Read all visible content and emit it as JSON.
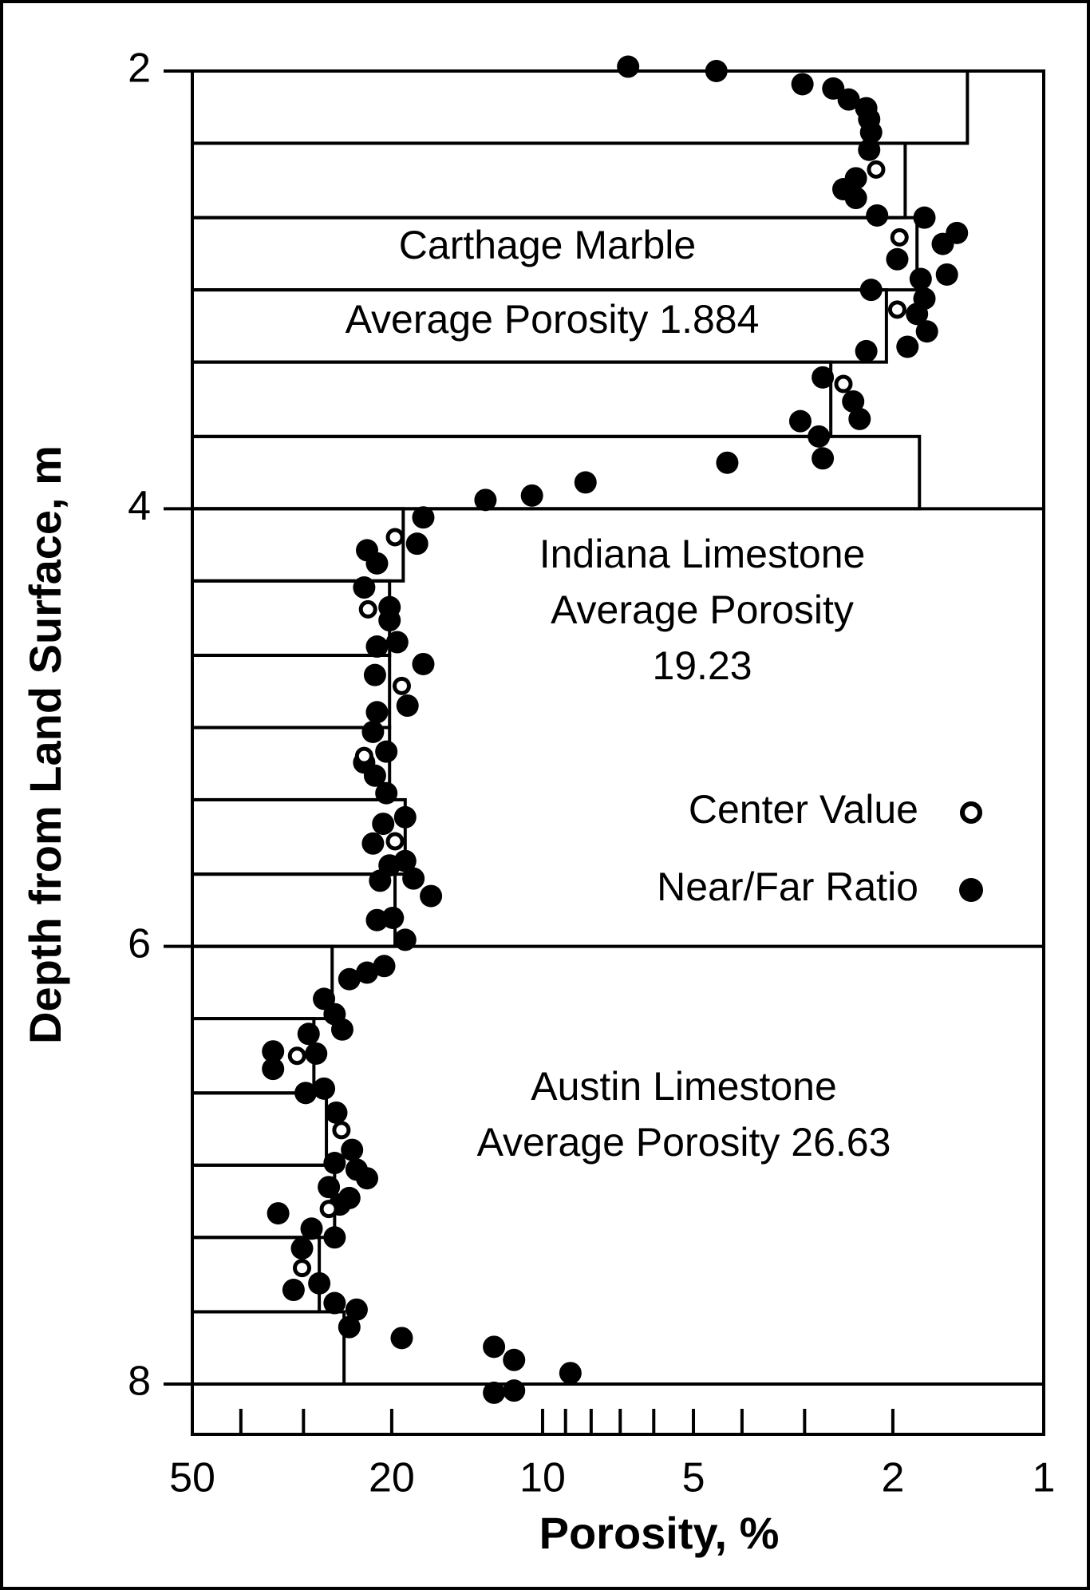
{
  "chart_data": {
    "type": "scatter",
    "x_label": "Porosity, %",
    "y_label": "Depth from Land Surface, m",
    "xscale": "log",
    "xlim": [
      50,
      1
    ],
    "xticks": [
      50,
      20,
      10,
      5,
      2,
      1
    ],
    "x_minor_ticks": [
      40,
      30,
      9,
      8,
      7,
      6,
      4,
      3
    ],
    "ylim": [
      2,
      8.23
    ],
    "y_inverted": true,
    "yticks": [
      2,
      4,
      6,
      8
    ],
    "grid": true,
    "legend": "center right",
    "annotations": [
      "Carthage Marble",
      "Average Porosity 1.884",
      "Indiana Limestone",
      "Average Porosity",
      "19.23",
      "Austin Limestone",
      "Average Porosity 26.63"
    ],
    "step_bars": {
      "color": "#000000",
      "depth_edges": [
        2,
        2.33,
        2.67,
        3,
        3.33,
        3.67,
        4,
        4.33,
        4.67,
        5,
        5.33,
        5.67,
        6,
        6.33,
        6.67,
        7,
        7.33,
        7.67,
        8
      ],
      "values": [
        1.42,
        1.89,
        1.79,
        2.06,
        2.66,
        1.77,
        18.97,
        20.2,
        20.2,
        20.2,
        18.8,
        19.7,
        26.3,
        28.6,
        27,
        26,
        27.9,
        24.9
      ]
    },
    "series": [
      {
        "name": "Center Value",
        "marker": "open",
        "color": "#000000",
        "x": [
          2.16,
          1.94,
          1.96,
          2.51,
          19.7,
          22.3,
          19.1,
          22.7,
          19.7,
          30.9,
          25.2,
          26.7,
          30.2
        ],
        "y": [
          2.45,
          2.76,
          3.09,
          3.43,
          4.13,
          4.46,
          4.81,
          5.13,
          5.52,
          6.5,
          6.84,
          7.2,
          7.47
        ]
      },
      {
        "name": "Near/Far Ratio",
        "marker": "filled",
        "color": "#000000",
        "x": [
          6.75,
          4.5,
          3.03,
          2.63,
          2.45,
          2.26,
          2.23,
          2.21,
          2.23,
          2.37,
          2.51,
          2.37,
          2.15,
          1.73,
          1.59,
          1.49,
          1.96,
          1.56,
          1.76,
          2.21,
          1.73,
          1.79,
          1.71,
          1.87,
          2.26,
          2.76,
          2.4,
          3.06,
          2.33,
          2.81,
          2.76,
          4.28,
          8.21,
          10.5,
          13,
          17.3,
          17.8,
          22.4,
          21.4,
          22.7,
          20.2,
          20.2,
          21.4,
          19.5,
          17.3,
          21.6,
          18.6,
          21.4,
          21.8,
          20.5,
          22.7,
          21.6,
          20.5,
          18.8,
          20.8,
          21.8,
          18.8,
          20.2,
          18.1,
          21.1,
          16.7,
          21.4,
          19.9,
          18.8,
          20.7,
          22.4,
          24.3,
          27.3,
          26,
          25.1,
          29.3,
          34.5,
          28.3,
          34.5,
          27.3,
          29.7,
          25.8,
          24,
          26,
          23.5,
          22.4,
          26.7,
          24.3,
          25.4,
          33.7,
          28.9,
          26,
          30.2,
          27.9,
          31.4,
          26,
          23.5,
          24.3,
          19.1,
          12.5,
          11.4,
          8.8,
          12.5,
          11.4
        ],
        "y": [
          1.98,
          2,
          2.06,
          2.08,
          2.13,
          2.17,
          2.22,
          2.28,
          2.36,
          2.49,
          2.54,
          2.58,
          2.66,
          2.67,
          2.79,
          2.74,
          2.86,
          2.93,
          2.95,
          3,
          3.04,
          3.11,
          3.19,
          3.26,
          3.28,
          3.4,
          3.51,
          3.6,
          3.59,
          3.67,
          3.77,
          3.79,
          3.88,
          3.94,
          3.96,
          4.04,
          4.16,
          4.19,
          4.25,
          4.36,
          4.45,
          4.51,
          4.63,
          4.61,
          4.71,
          4.76,
          4.9,
          4.93,
          5.02,
          5.11,
          5.16,
          5.22,
          5.3,
          5.41,
          5.44,
          5.53,
          5.61,
          5.63,
          5.69,
          5.7,
          5.77,
          5.88,
          5.87,
          5.97,
          6.09,
          6.12,
          6.15,
          6.24,
          6.31,
          6.38,
          6.4,
          6.48,
          6.49,
          6.56,
          6.65,
          6.67,
          6.76,
          6.93,
          6.99,
          7.02,
          7.06,
          7.1,
          7.15,
          7.18,
          7.22,
          7.29,
          7.33,
          7.38,
          7.54,
          7.57,
          7.63,
          7.66,
          7.74,
          7.79,
          7.83,
          7.89,
          7.95,
          8.04,
          8.03
        ]
      }
    ]
  }
}
